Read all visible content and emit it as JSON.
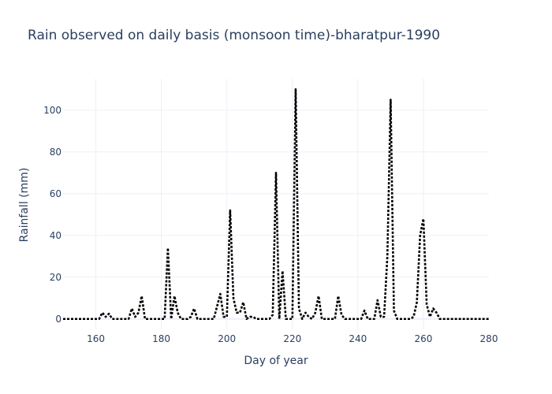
{
  "chart_data": {
    "type": "line",
    "title": "Rain observed on daily basis (monsoon time)-bharatpur-1990",
    "xlabel": "Day of year",
    "ylabel": "Rainfall (mm)",
    "xlim": [
      150,
      280
    ],
    "ylim": [
      -5,
      115
    ],
    "xticks": [
      160,
      180,
      200,
      220,
      240,
      260,
      280
    ],
    "yticks": [
      0,
      20,
      40,
      60,
      80,
      100
    ],
    "grid": true,
    "legend": "none",
    "line_color": "#000000",
    "line_style": "dotted",
    "series": [
      {
        "x": [
          150,
          151,
          152,
          153,
          154,
          155,
          156,
          157,
          158,
          159,
          160,
          161,
          162,
          163,
          164,
          165,
          166,
          167,
          168,
          169,
          170,
          171,
          172,
          173,
          174,
          175,
          176,
          177,
          178,
          179,
          180,
          181,
          182,
          183,
          184,
          185,
          186,
          187,
          188,
          189,
          190,
          191,
          192,
          193,
          194,
          195,
          196,
          197,
          198,
          199,
          200,
          201,
          202,
          203,
          204,
          205,
          206,
          207,
          208,
          209,
          210,
          211,
          212,
          213,
          214,
          215,
          216,
          217,
          218,
          219,
          220,
          221,
          222,
          223,
          224,
          225,
          226,
          227,
          228,
          229,
          230,
          231,
          232,
          233,
          234,
          235,
          236,
          237,
          238,
          239,
          240,
          241,
          242,
          243,
          244,
          245,
          246,
          247,
          248,
          249,
          250,
          251,
          252,
          253,
          254,
          255,
          256,
          257,
          258,
          259,
          260,
          261,
          262,
          263,
          264,
          265,
          266,
          267,
          268,
          269,
          270,
          271,
          272,
          273,
          274,
          275,
          276,
          277,
          278,
          279,
          280
        ],
        "values": [
          0,
          0,
          0,
          0,
          0,
          0,
          0,
          0,
          0,
          0,
          0,
          0,
          3,
          1,
          2.5,
          0,
          0,
          0,
          0,
          0,
          0,
          5,
          1,
          3,
          11,
          0,
          0,
          0,
          0,
          0,
          0,
          0,
          34,
          0,
          11,
          3,
          0,
          0,
          0,
          1,
          5,
          0,
          0,
          0,
          0,
          0,
          0,
          6,
          12,
          1,
          1,
          52,
          10,
          3,
          3,
          8,
          0,
          1,
          1,
          0,
          0,
          0,
          0,
          0,
          2,
          70,
          0,
          23,
          0,
          0,
          0,
          110,
          5,
          0,
          3,
          1,
          0,
          3,
          11,
          0,
          0,
          0,
          0,
          0,
          11,
          2,
          0,
          0,
          0,
          0,
          0,
          0,
          4,
          0,
          0,
          0,
          9,
          1,
          1,
          30,
          105,
          4,
          0,
          0,
          0,
          0,
          0,
          1,
          8,
          40,
          48,
          7,
          1,
          5,
          3,
          0,
          0,
          0,
          0,
          0,
          0,
          0,
          0,
          0,
          0,
          0,
          0,
          0,
          0,
          0,
          0
        ]
      }
    ]
  }
}
